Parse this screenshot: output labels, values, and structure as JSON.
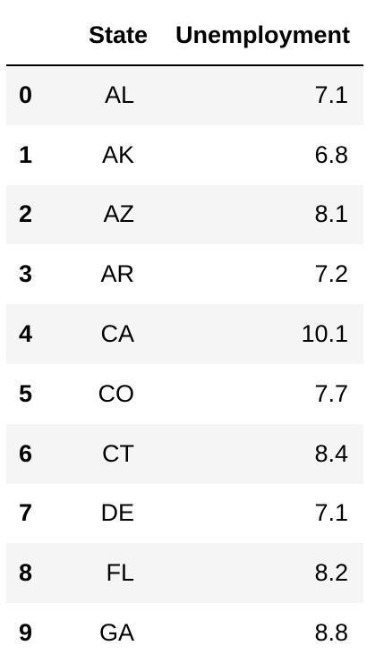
{
  "table": {
    "columns": [
      "",
      "State",
      "Unemployment"
    ],
    "rows": [
      {
        "index": "0",
        "state": "AL",
        "unemployment": "7.1"
      },
      {
        "index": "1",
        "state": "AK",
        "unemployment": "6.8"
      },
      {
        "index": "2",
        "state": "AZ",
        "unemployment": "8.1"
      },
      {
        "index": "3",
        "state": "AR",
        "unemployment": "7.2"
      },
      {
        "index": "4",
        "state": "CA",
        "unemployment": "10.1"
      },
      {
        "index": "5",
        "state": "CO",
        "unemployment": "7.7"
      },
      {
        "index": "6",
        "state": "CT",
        "unemployment": "8.4"
      },
      {
        "index": "7",
        "state": "DE",
        "unemployment": "7.1"
      },
      {
        "index": "8",
        "state": "FL",
        "unemployment": "8.2"
      },
      {
        "index": "9",
        "state": "GA",
        "unemployment": "8.8"
      }
    ]
  }
}
